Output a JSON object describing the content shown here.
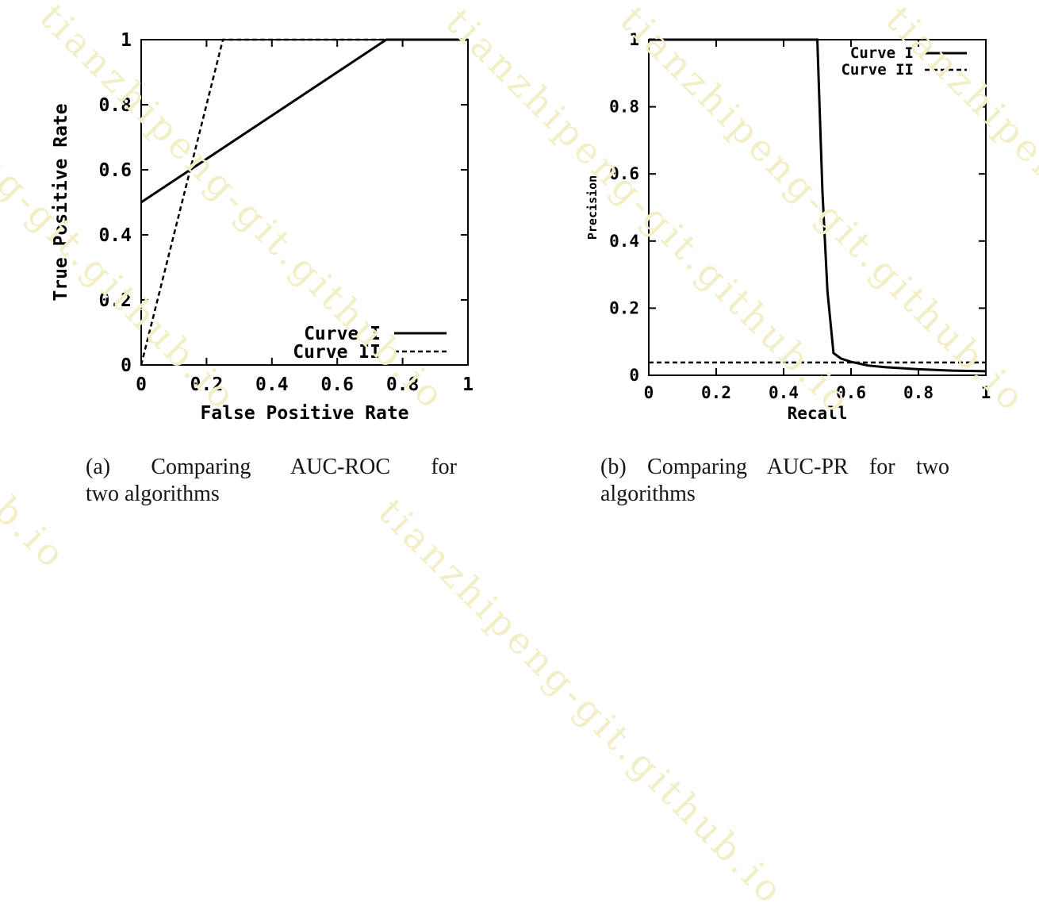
{
  "watermark": {
    "text": "tianzhipeng-git.github.io",
    "color": "rgb(242,238,198)"
  },
  "figure": {
    "captions": {
      "a": {
        "line1": "(a) Comparing AUC-ROC for",
        "line2": "two algorithms"
      },
      "b": {
        "line1": "(b) Comparing AUC-PR for two",
        "line2": "algorithms"
      }
    }
  },
  "chart_data": [
    {
      "id": "roc",
      "type": "line",
      "title": "",
      "xlabel": "False Positive Rate",
      "ylabel": "True Positive Rate",
      "xlim": [
        0,
        1
      ],
      "ylim": [
        0,
        1
      ],
      "xticks": [
        0,
        0.2,
        0.4,
        0.6,
        0.8,
        1
      ],
      "yticks": [
        0,
        0.2,
        0.4,
        0.6,
        0.8,
        1
      ],
      "grid": false,
      "legend_position": "bottom-right-inside",
      "line_color": "#000000",
      "series": [
        {
          "name": "Curve I",
          "style": "solid",
          "points": [
            [
              0,
              0.5
            ],
            [
              0.75,
              1
            ],
            [
              1,
              1
            ]
          ]
        },
        {
          "name": "Curve II",
          "style": "dashed",
          "points": [
            [
              0,
              0
            ],
            [
              0.25,
              1
            ],
            [
              1,
              1
            ]
          ]
        }
      ]
    },
    {
      "id": "pr",
      "type": "line",
      "title": "",
      "xlabel": "Recall",
      "ylabel": "Precision",
      "xlim": [
        0,
        1
      ],
      "ylim": [
        0,
        1
      ],
      "xticks": [
        0,
        0.2,
        0.4,
        0.6,
        0.8,
        1
      ],
      "yticks": [
        0,
        0.2,
        0.4,
        0.6,
        0.8,
        1
      ],
      "grid": false,
      "legend_position": "top-right-inside",
      "line_color": "#000000",
      "series": [
        {
          "name": "Curve I",
          "style": "solid",
          "points": [
            [
              0,
              1
            ],
            [
              0.5,
              1
            ],
            [
              0.515,
              0.55
            ],
            [
              0.53,
              0.25
            ],
            [
              0.548,
              0.066
            ],
            [
              0.57,
              0.05
            ],
            [
              0.6,
              0.04
            ],
            [
              0.65,
              0.029
            ],
            [
              0.7,
              0.024
            ],
            [
              0.8,
              0.018
            ],
            [
              0.9,
              0.014
            ],
            [
              1,
              0.012
            ]
          ]
        },
        {
          "name": "Curve II",
          "style": "dashed",
          "points": [
            [
              0,
              0.038
            ],
            [
              1,
              0.038
            ]
          ]
        }
      ]
    }
  ]
}
